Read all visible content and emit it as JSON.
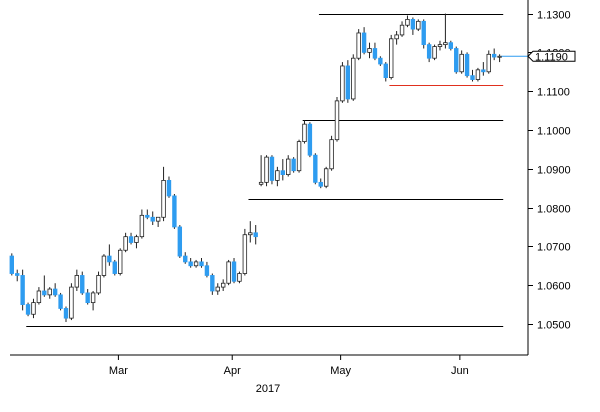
{
  "chart_data": {
    "type": "candlestick",
    "title": "",
    "xlabel": "2017",
    "ylabel": "",
    "ylim": [
      1.042,
      1.1335
    ],
    "y_ticks": [
      "1.1300",
      "1.1200",
      "1.1100",
      "1.1000",
      "1.0900",
      "1.0800",
      "1.0700",
      "1.0600",
      "1.0500"
    ],
    "x_ticks": [
      {
        "label": "Mar",
        "day": 20
      },
      {
        "label": "Apr",
        "day": 41
      },
      {
        "label": "May",
        "day": 61
      },
      {
        "label": "Jun",
        "day": 83
      }
    ],
    "year_label": "2017",
    "current_value": {
      "label": "1.1190",
      "value": 1.119
    },
    "colors": {
      "up": "#ffffff",
      "down": "#2e9cf0",
      "wick": "#222222",
      "support": "#e0301e",
      "line": "#000000",
      "axis": "#000000"
    },
    "reference_lines": [
      {
        "value": 1.13,
        "from": 57,
        "to": 91,
        "color": "#000000"
      },
      {
        "value": 1.1115,
        "from": 70,
        "to": 91,
        "color": "#e0301e"
      },
      {
        "value": 1.1025,
        "from": 54,
        "to": 91,
        "color": "#000000"
      },
      {
        "value": 1.0822,
        "from": 44,
        "to": 91,
        "color": "#000000"
      },
      {
        "value": 1.0495,
        "from": 3,
        "to": 91,
        "color": "#000000"
      }
    ],
    "candles": [
      {
        "o": 1.0675,
        "h": 1.0682,
        "l": 1.0625,
        "c": 1.063
      },
      {
        "o": 1.063,
        "h": 1.064,
        "l": 1.061,
        "c": 1.0625
      },
      {
        "o": 1.0625,
        "h": 1.064,
        "l": 1.0535,
        "c": 1.055
      },
      {
        "o": 1.055,
        "h": 1.0555,
        "l": 1.052,
        "c": 1.0525
      },
      {
        "o": 1.0525,
        "h": 1.0565,
        "l": 1.0515,
        "c": 1.0555
      },
      {
        "o": 1.0555,
        "h": 1.0595,
        "l": 1.055,
        "c": 1.0585
      },
      {
        "o": 1.0585,
        "h": 1.0625,
        "l": 1.057,
        "c": 1.0575
      },
      {
        "o": 1.0575,
        "h": 1.0595,
        "l": 1.0565,
        "c": 1.059
      },
      {
        "o": 1.059,
        "h": 1.0605,
        "l": 1.057,
        "c": 1.0575
      },
      {
        "o": 1.0575,
        "h": 1.058,
        "l": 1.0535,
        "c": 1.054
      },
      {
        "o": 1.054,
        "h": 1.0545,
        "l": 1.0505,
        "c": 1.0515
      },
      {
        "o": 1.0515,
        "h": 1.0605,
        "l": 1.051,
        "c": 1.0595
      },
      {
        "o": 1.0595,
        "h": 1.064,
        "l": 1.0585,
        "c": 1.0625
      },
      {
        "o": 1.0625,
        "h": 1.0635,
        "l": 1.0575,
        "c": 1.058
      },
      {
        "o": 1.058,
        "h": 1.059,
        "l": 1.055,
        "c": 1.0555
      },
      {
        "o": 1.0555,
        "h": 1.0585,
        "l": 1.0535,
        "c": 1.058
      },
      {
        "o": 1.058,
        "h": 1.0635,
        "l": 1.0575,
        "c": 1.0625
      },
      {
        "o": 1.0625,
        "h": 1.068,
        "l": 1.062,
        "c": 1.0675
      },
      {
        "o": 1.0675,
        "h": 1.0705,
        "l": 1.065,
        "c": 1.066
      },
      {
        "o": 1.066,
        "h": 1.0665,
        "l": 1.0625,
        "c": 1.063
      },
      {
        "o": 1.063,
        "h": 1.0695,
        "l": 1.0625,
        "c": 1.069
      },
      {
        "o": 1.069,
        "h": 1.0735,
        "l": 1.0685,
        "c": 1.0725
      },
      {
        "o": 1.0725,
        "h": 1.0735,
        "l": 1.0705,
        "c": 1.071
      },
      {
        "o": 1.071,
        "h": 1.073,
        "l": 1.0695,
        "c": 1.0725
      },
      {
        "o": 1.0725,
        "h": 1.0795,
        "l": 1.072,
        "c": 1.078
      },
      {
        "o": 1.078,
        "h": 1.0795,
        "l": 1.077,
        "c": 1.0775
      },
      {
        "o": 1.0775,
        "h": 1.079,
        "l": 1.0755,
        "c": 1.0765
      },
      {
        "o": 1.0765,
        "h": 1.0775,
        "l": 1.075,
        "c": 1.0775
      },
      {
        "o": 1.0775,
        "h": 1.0905,
        "l": 1.0765,
        "c": 1.087
      },
      {
        "o": 1.087,
        "h": 1.088,
        "l": 1.0825,
        "c": 1.083
      },
      {
        "o": 1.083,
        "h": 1.0835,
        "l": 1.0745,
        "c": 1.075
      },
      {
        "o": 1.075,
        "h": 1.0755,
        "l": 1.067,
        "c": 1.0675
      },
      {
        "o": 1.0675,
        "h": 1.0685,
        "l": 1.0655,
        "c": 1.066
      },
      {
        "o": 1.066,
        "h": 1.067,
        "l": 1.0645,
        "c": 1.065
      },
      {
        "o": 1.065,
        "h": 1.0665,
        "l": 1.0645,
        "c": 1.066
      },
      {
        "o": 1.066,
        "h": 1.067,
        "l": 1.0645,
        "c": 1.065
      },
      {
        "o": 1.065,
        "h": 1.066,
        "l": 1.062,
        "c": 1.0625
      },
      {
        "o": 1.0625,
        "h": 1.063,
        "l": 1.0575,
        "c": 1.0585
      },
      {
        "o": 1.0585,
        "h": 1.0605,
        "l": 1.0575,
        "c": 1.0595
      },
      {
        "o": 1.0595,
        "h": 1.0615,
        "l": 1.0585,
        "c": 1.0605
      },
      {
        "o": 1.0605,
        "h": 1.0665,
        "l": 1.06,
        "c": 1.066
      },
      {
        "o": 1.066,
        "h": 1.067,
        "l": 1.0605,
        "c": 1.061
      },
      {
        "o": 1.061,
        "h": 1.0635,
        "l": 1.0605,
        "c": 1.063
      },
      {
        "o": 1.063,
        "h": 1.0745,
        "l": 1.0625,
        "c": 1.073
      },
      {
        "o": 1.073,
        "h": 1.0765,
        "l": 1.071,
        "c": 1.0735
      },
      {
        "o": 1.0735,
        "h": 1.0755,
        "l": 1.0705,
        "c": 1.0725
      },
      {
        "o": 1.086,
        "h": 1.0935,
        "l": 1.0855,
        "c": 1.0865
      },
      {
        "o": 1.0865,
        "h": 1.0935,
        "l": 1.0855,
        "c": 1.093
      },
      {
        "o": 1.093,
        "h": 1.0935,
        "l": 1.086,
        "c": 1.087
      },
      {
        "o": 1.087,
        "h": 1.0905,
        "l": 1.0855,
        "c": 1.0895
      },
      {
        "o": 1.0895,
        "h": 1.0925,
        "l": 1.087,
        "c": 1.0885
      },
      {
        "o": 1.0885,
        "h": 1.0935,
        "l": 1.088,
        "c": 1.0925
      },
      {
        "o": 1.0925,
        "h": 1.093,
        "l": 1.089,
        "c": 1.0895
      },
      {
        "o": 1.0895,
        "h": 1.0975,
        "l": 1.089,
        "c": 1.097
      },
      {
        "o": 1.097,
        "h": 1.1025,
        "l": 1.0965,
        "c": 1.1015
      },
      {
        "o": 1.1015,
        "h": 1.102,
        "l": 1.093,
        "c": 1.0935
      },
      {
        "o": 1.0935,
        "h": 1.094,
        "l": 1.086,
        "c": 1.0865
      },
      {
        "o": 1.0865,
        "h": 1.0875,
        "l": 1.085,
        "c": 1.0855
      },
      {
        "o": 1.0855,
        "h": 1.0905,
        "l": 1.085,
        "c": 1.09
      },
      {
        "o": 1.09,
        "h": 1.0985,
        "l": 1.0895,
        "c": 1.0975
      },
      {
        "o": 1.0975,
        "h": 1.1085,
        "l": 1.097,
        "c": 1.1075
      },
      {
        "o": 1.1075,
        "h": 1.1175,
        "l": 1.107,
        "c": 1.1165
      },
      {
        "o": 1.1165,
        "h": 1.118,
        "l": 1.107,
        "c": 1.108
      },
      {
        "o": 1.108,
        "h": 1.1195,
        "l": 1.1075,
        "c": 1.1185
      },
      {
        "o": 1.1185,
        "h": 1.126,
        "l": 1.118,
        "c": 1.125
      },
      {
        "o": 1.125,
        "h": 1.1265,
        "l": 1.1195,
        "c": 1.12
      },
      {
        "o": 1.12,
        "h": 1.1225,
        "l": 1.1185,
        "c": 1.121
      },
      {
        "o": 1.121,
        "h": 1.1225,
        "l": 1.118,
        "c": 1.1185
      },
      {
        "o": 1.1185,
        "h": 1.119,
        "l": 1.1165,
        "c": 1.117
      },
      {
        "o": 1.117,
        "h": 1.1175,
        "l": 1.1125,
        "c": 1.1135
      },
      {
        "o": 1.1135,
        "h": 1.1245,
        "l": 1.113,
        "c": 1.1235
      },
      {
        "o": 1.1235,
        "h": 1.1255,
        "l": 1.122,
        "c": 1.1245
      },
      {
        "o": 1.1245,
        "h": 1.128,
        "l": 1.124,
        "c": 1.127
      },
      {
        "o": 1.127,
        "h": 1.1295,
        "l": 1.1265,
        "c": 1.1285
      },
      {
        "o": 1.1285,
        "h": 1.129,
        "l": 1.1245,
        "c": 1.126
      },
      {
        "o": 1.126,
        "h": 1.1285,
        "l": 1.1255,
        "c": 1.128
      },
      {
        "o": 1.128,
        "h": 1.1285,
        "l": 1.121,
        "c": 1.122
      },
      {
        "o": 1.122,
        "h": 1.1225,
        "l": 1.1175,
        "c": 1.1185
      },
      {
        "o": 1.1185,
        "h": 1.122,
        "l": 1.118,
        "c": 1.1215
      },
      {
        "o": 1.1215,
        "h": 1.123,
        "l": 1.1205,
        "c": 1.122
      },
      {
        "o": 1.122,
        "h": 1.13,
        "l": 1.121,
        "c": 1.1225
      },
      {
        "o": 1.1225,
        "h": 1.123,
        "l": 1.1205,
        "c": 1.121
      },
      {
        "o": 1.121,
        "h": 1.1215,
        "l": 1.1145,
        "c": 1.115
      },
      {
        "o": 1.115,
        "h": 1.1205,
        "l": 1.1145,
        "c": 1.1195
      },
      {
        "o": 1.1195,
        "h": 1.12,
        "l": 1.1135,
        "c": 1.114
      },
      {
        "o": 1.114,
        "h": 1.1155,
        "l": 1.1125,
        "c": 1.113
      },
      {
        "o": 1.113,
        "h": 1.116,
        "l": 1.1125,
        "c": 1.1155
      },
      {
        "o": 1.1155,
        "h": 1.1175,
        "l": 1.114,
        "c": 1.115
      },
      {
        "o": 1.115,
        "h": 1.1205,
        "l": 1.1145,
        "c": 1.1195
      },
      {
        "o": 1.1195,
        "h": 1.121,
        "l": 1.118,
        "c": 1.1188
      },
      {
        "o": 1.1188,
        "h": 1.1195,
        "l": 1.1175,
        "c": 1.119
      }
    ]
  }
}
